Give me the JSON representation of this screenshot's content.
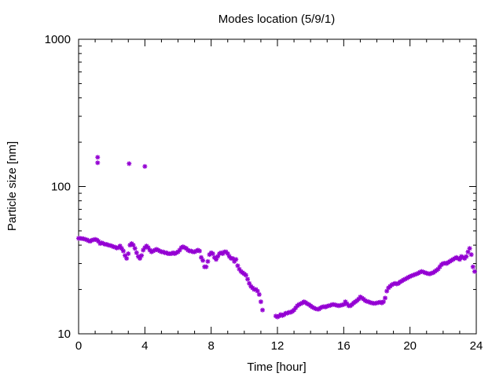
{
  "chart_data": {
    "type": "scatter",
    "title": "Modes location (5/9/1)",
    "xlabel": "Time [hour]",
    "ylabel": "Particle size [nm]",
    "xlim": [
      0,
      24
    ],
    "ylim": [
      10,
      1000
    ],
    "yscale": "log",
    "grid": false,
    "legend": "none",
    "x_ticks": [
      "0",
      "4",
      "8",
      "12",
      "16",
      "20",
      "24"
    ],
    "x_tick_values": [
      0,
      4,
      8,
      12,
      16,
      20,
      24
    ],
    "y_ticks": [
      "10",
      "100",
      "1000"
    ],
    "y_tick_values": [
      10,
      100,
      1000
    ],
    "marker_color": "#9400d3",
    "series": [
      {
        "points": [
          [
            0.0,
            44.5
          ],
          [
            0.1,
            44.5
          ],
          [
            0.2,
            44.3
          ],
          [
            0.3,
            44.2
          ],
          [
            0.4,
            43.8
          ],
          [
            0.5,
            43.5
          ],
          [
            0.6,
            42.8
          ],
          [
            0.7,
            42.5
          ],
          [
            0.8,
            43.2
          ],
          [
            0.9,
            43.5
          ],
          [
            1.0,
            43.8
          ],
          [
            1.1,
            43.4
          ],
          [
            1.2,
            42.5
          ],
          [
            1.3,
            41.0
          ],
          [
            1.4,
            41.5
          ],
          [
            1.5,
            41.0
          ],
          [
            1.6,
            40.5
          ],
          [
            1.7,
            40.5
          ],
          [
            1.8,
            40.0
          ],
          [
            1.9,
            39.8
          ],
          [
            2.0,
            39.5
          ],
          [
            2.1,
            39.0
          ],
          [
            2.2,
            38.8
          ],
          [
            2.3,
            38.2
          ],
          [
            2.4,
            38.5
          ],
          [
            2.5,
            39.5
          ],
          [
            2.6,
            38.0
          ],
          [
            2.7,
            36.5
          ],
          [
            2.8,
            34.0
          ],
          [
            2.9,
            32.5
          ],
          [
            3.0,
            35.0
          ],
          [
            3.1,
            40.0
          ],
          [
            3.2,
            41.0
          ],
          [
            3.3,
            40.0
          ],
          [
            3.4,
            38.0
          ],
          [
            3.5,
            35.5
          ],
          [
            3.6,
            33.5
          ],
          [
            3.7,
            32.5
          ],
          [
            3.8,
            34.0
          ],
          [
            3.9,
            37.0
          ],
          [
            4.0,
            38.5
          ],
          [
            4.1,
            39.5
          ],
          [
            4.2,
            38.5
          ],
          [
            4.3,
            37.0
          ],
          [
            4.4,
            36.0
          ],
          [
            4.5,
            36.5
          ],
          [
            4.6,
            37.0
          ],
          [
            4.7,
            37.5
          ],
          [
            4.8,
            37.0
          ],
          [
            4.9,
            36.5
          ],
          [
            5.0,
            36.0
          ],
          [
            5.1,
            36.0
          ],
          [
            5.2,
            35.5
          ],
          [
            5.3,
            35.5
          ],
          [
            5.4,
            35.0
          ],
          [
            5.5,
            35.0
          ],
          [
            5.6,
            35.0
          ],
          [
            5.7,
            35.5
          ],
          [
            5.8,
            35.0
          ],
          [
            5.9,
            35.5
          ],
          [
            6.0,
            36.0
          ],
          [
            6.1,
            37.0
          ],
          [
            6.2,
            38.5
          ],
          [
            6.3,
            39.0
          ],
          [
            6.4,
            38.5
          ],
          [
            6.5,
            38.0
          ],
          [
            6.6,
            37.0
          ],
          [
            6.7,
            36.5
          ],
          [
            6.8,
            36.5
          ],
          [
            6.9,
            36.0
          ],
          [
            7.0,
            36.0
          ],
          [
            7.1,
            36.5
          ],
          [
            7.2,
            37.0
          ],
          [
            7.3,
            36.5
          ],
          [
            7.4,
            33.0
          ],
          [
            7.5,
            31.5
          ],
          [
            7.6,
            28.5
          ],
          [
            7.7,
            28.5
          ],
          [
            7.8,
            31.0
          ],
          [
            7.9,
            34.5
          ],
          [
            8.0,
            35.5
          ],
          [
            8.1,
            35.0
          ],
          [
            8.2,
            33.0
          ],
          [
            8.3,
            32.0
          ],
          [
            8.4,
            33.5
          ],
          [
            8.5,
            35.0
          ],
          [
            8.6,
            35.5
          ],
          [
            8.7,
            35.0
          ],
          [
            8.8,
            36.0
          ],
          [
            8.9,
            36.0
          ],
          [
            9.0,
            35.0
          ],
          [
            9.1,
            33.5
          ],
          [
            9.2,
            32.5
          ],
          [
            9.3,
            32.5
          ],
          [
            9.4,
            31.0
          ],
          [
            9.5,
            32.0
          ],
          [
            9.6,
            29.0
          ],
          [
            9.7,
            27.5
          ],
          [
            9.8,
            26.5
          ],
          [
            9.9,
            26.0
          ],
          [
            10.0,
            25.5
          ],
          [
            10.1,
            25.0
          ],
          [
            10.2,
            23.5
          ],
          [
            10.3,
            22.0
          ],
          [
            10.4,
            21.0
          ],
          [
            10.5,
            20.5
          ],
          [
            10.6,
            20.0
          ],
          [
            10.7,
            20.0
          ],
          [
            10.8,
            19.5
          ],
          [
            10.9,
            18.5
          ],
          [
            11.0,
            16.5
          ],
          [
            11.1,
            14.5
          ],
          [
            11.9,
            13.2
          ],
          [
            12.0,
            13.0
          ],
          [
            12.1,
            13.2
          ],
          [
            12.2,
            13.5
          ],
          [
            12.3,
            13.3
          ],
          [
            12.4,
            13.5
          ],
          [
            12.5,
            13.8
          ],
          [
            12.6,
            13.8
          ],
          [
            12.7,
            14.0
          ],
          [
            12.8,
            14.0
          ],
          [
            12.9,
            14.2
          ],
          [
            13.0,
            14.5
          ],
          [
            13.1,
            15.0
          ],
          [
            13.2,
            15.5
          ],
          [
            13.3,
            15.8
          ],
          [
            13.4,
            16.0
          ],
          [
            13.5,
            16.2
          ],
          [
            13.6,
            16.5
          ],
          [
            13.7,
            16.3
          ],
          [
            13.8,
            16.0
          ],
          [
            13.9,
            15.8
          ],
          [
            14.0,
            15.5
          ],
          [
            14.1,
            15.2
          ],
          [
            14.2,
            15.0
          ],
          [
            14.3,
            14.8
          ],
          [
            14.4,
            14.7
          ],
          [
            14.5,
            14.7
          ],
          [
            14.6,
            15.0
          ],
          [
            14.7,
            15.2
          ],
          [
            14.8,
            15.3
          ],
          [
            14.9,
            15.2
          ],
          [
            15.0,
            15.4
          ],
          [
            15.1,
            15.5
          ],
          [
            15.2,
            15.6
          ],
          [
            15.3,
            15.8
          ],
          [
            15.4,
            15.8
          ],
          [
            15.5,
            15.7
          ],
          [
            15.6,
            15.6
          ],
          [
            15.7,
            15.5
          ],
          [
            15.8,
            15.6
          ],
          [
            15.9,
            15.7
          ],
          [
            16.0,
            15.8
          ],
          [
            16.1,
            16.5
          ],
          [
            16.2,
            16.0
          ],
          [
            16.3,
            15.5
          ],
          [
            16.4,
            15.5
          ],
          [
            16.5,
            15.8
          ],
          [
            16.6,
            16.2
          ],
          [
            16.7,
            16.5
          ],
          [
            16.8,
            16.8
          ],
          [
            16.9,
            17.2
          ],
          [
            17.0,
            17.8
          ],
          [
            17.1,
            17.5
          ],
          [
            17.2,
            17.2
          ],
          [
            17.3,
            16.8
          ],
          [
            17.4,
            16.6
          ],
          [
            17.5,
            16.5
          ],
          [
            17.6,
            16.3
          ],
          [
            17.7,
            16.2
          ],
          [
            17.8,
            16.1
          ],
          [
            17.9,
            16.1
          ],
          [
            18.0,
            16.2
          ],
          [
            18.1,
            16.3
          ],
          [
            18.2,
            16.4
          ],
          [
            18.3,
            16.2
          ],
          [
            18.4,
            16.5
          ],
          [
            18.5,
            17.5
          ],
          [
            18.6,
            19.5
          ],
          [
            18.7,
            20.5
          ],
          [
            18.8,
            21.0
          ],
          [
            18.9,
            21.5
          ],
          [
            19.0,
            21.8
          ],
          [
            19.1,
            22.0
          ],
          [
            19.2,
            21.8
          ],
          [
            19.3,
            22.0
          ],
          [
            19.4,
            22.5
          ],
          [
            19.5,
            22.8
          ],
          [
            19.6,
            23.2
          ],
          [
            19.7,
            23.5
          ],
          [
            19.8,
            23.8
          ],
          [
            19.9,
            24.2
          ],
          [
            20.0,
            24.5
          ],
          [
            20.1,
            24.8
          ],
          [
            20.2,
            25.0
          ],
          [
            20.3,
            25.3
          ],
          [
            20.4,
            25.5
          ],
          [
            20.5,
            25.8
          ],
          [
            20.6,
            26.2
          ],
          [
            20.7,
            26.5
          ],
          [
            20.8,
            26.3
          ],
          [
            20.9,
            26.0
          ],
          [
            21.0,
            25.8
          ],
          [
            21.1,
            25.6
          ],
          [
            21.2,
            25.5
          ],
          [
            21.3,
            25.8
          ],
          [
            21.4,
            26.0
          ],
          [
            21.5,
            26.5
          ],
          [
            21.6,
            27.0
          ],
          [
            21.7,
            27.5
          ],
          [
            21.8,
            28.5
          ],
          [
            21.9,
            29.5
          ],
          [
            22.0,
            30.0
          ],
          [
            22.1,
            30.2
          ],
          [
            22.2,
            30.0
          ],
          [
            22.3,
            30.5
          ],
          [
            22.4,
            31.0
          ],
          [
            22.5,
            31.5
          ],
          [
            22.6,
            32.0
          ],
          [
            22.7,
            32.5
          ],
          [
            22.8,
            33.0
          ],
          [
            22.9,
            32.5
          ],
          [
            23.0,
            32.0
          ],
          [
            23.1,
            33.5
          ],
          [
            23.2,
            33.0
          ],
          [
            23.3,
            32.5
          ],
          [
            23.4,
            33.5
          ],
          [
            23.5,
            36.0
          ],
          [
            23.6,
            38.0
          ],
          [
            23.7,
            34.5
          ],
          [
            23.8,
            28.5
          ],
          [
            23.9,
            26.5
          ],
          [
            1.15,
            158
          ],
          [
            1.15,
            145
          ],
          [
            3.05,
            143
          ],
          [
            4.0,
            137
          ]
        ]
      }
    ]
  }
}
